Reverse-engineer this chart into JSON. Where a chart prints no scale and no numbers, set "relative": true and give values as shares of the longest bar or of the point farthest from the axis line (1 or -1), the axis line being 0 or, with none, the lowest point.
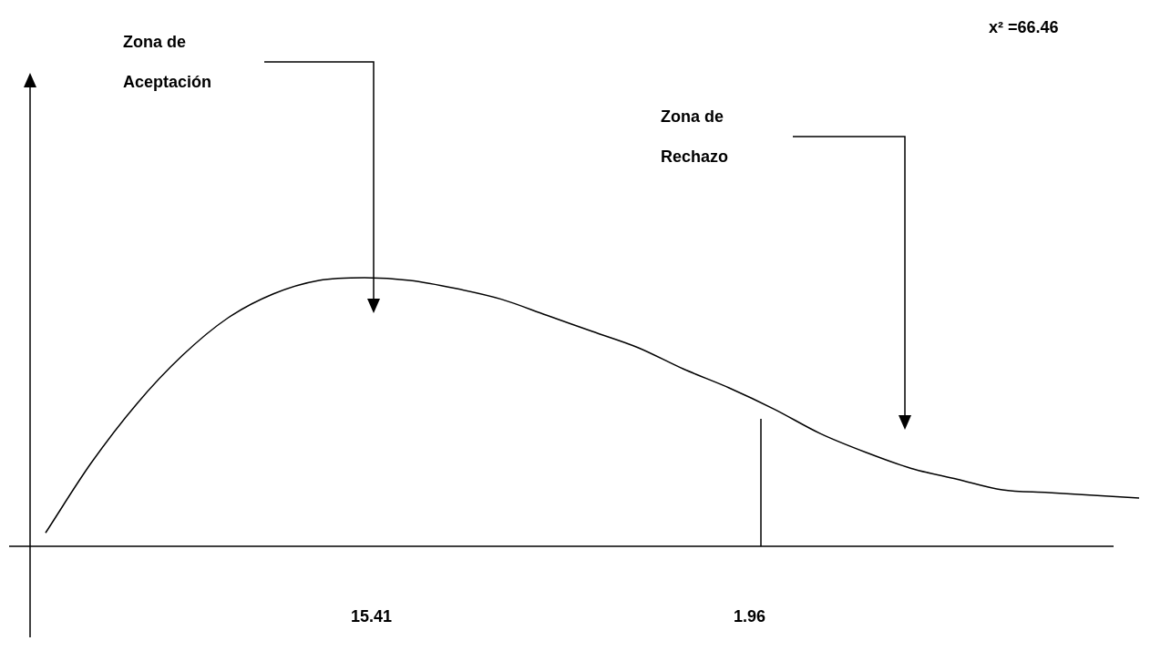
{
  "chart_data": {
    "type": "line",
    "relative": true,
    "color": "#000000",
    "marker": "none",
    "line_style": "solid",
    "legend": false,
    "categories": [
      null,
      null,
      null,
      null,
      null,
      null,
      null,
      null,
      null,
      null,
      null,
      null,
      null,
      null,
      null,
      null,
      null,
      null,
      null,
      null,
      null,
      null,
      null,
      null,
      null
    ],
    "values": [
      0.05,
      0.31,
      0.53,
      0.71,
      0.85,
      0.94,
      0.99,
      1,
      0.99,
      0.96,
      0.92,
      0.86,
      0.8,
      0.74,
      0.66,
      0.59,
      0.51,
      0.42,
      0.35,
      0.29,
      0.25,
      0.21,
      0.2,
      0.19,
      0.18
    ],
    "annotations": [
      "Zona de Aceptación",
      "Zona de Rechazo",
      "x² =66.46",
      "15.41",
      "1.96"
    ]
  }
}
